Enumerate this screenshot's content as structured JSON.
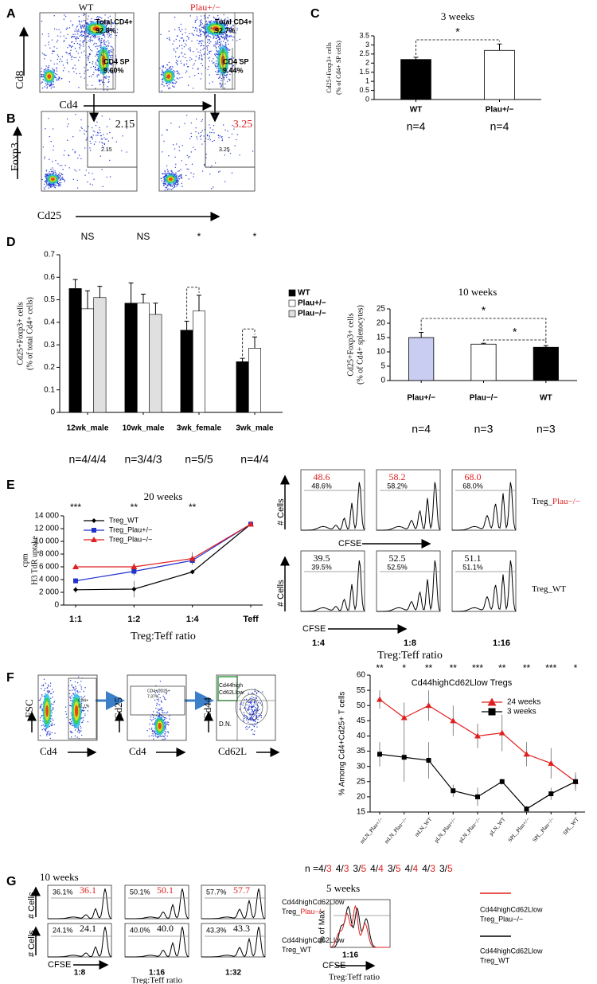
{
  "figure": {
    "A": {
      "label": "A",
      "columns": [
        "WT",
        "Plau+/−"
      ],
      "y_axis": "Cd8",
      "x_axis": "Cd4",
      "gates": [
        [
          "Total CD4+",
          "92.8%",
          "CD4 SP",
          "9.60%"
        ],
        [
          "Total CD4+",
          "92.7%",
          "CD4 SP",
          "9.44%"
        ]
      ]
    },
    "B": {
      "label": "B",
      "y_axis": "Foxp3",
      "x_axis": "Cd25",
      "gates": [
        [
          "2.15",
          "2.15"
        ],
        [
          "3.25",
          "3.25"
        ]
      ]
    },
    "C": {
      "label": "C"
    },
    "D": {
      "label": "D"
    },
    "E": {
      "label": "E",
      "rows": [
        {
          "name": [
            "Treg_",
            "Plau−/−"
          ],
          "values": [
            [
              "48.6",
              "48.6%"
            ],
            [
              "58.2",
              "58.2%"
            ],
            [
              "68.0",
              "68.0%"
            ]
          ]
        },
        {
          "name": [
            "Treg_WT"
          ],
          "values": [
            [
              "39.5",
              "39.5%"
            ],
            [
              "52.5",
              "52.5%"
            ],
            [
              "51.1",
              "51.1%"
            ]
          ]
        }
      ],
      "y_axis": "# Cells",
      "x_axis": "CFSE",
      "ratios": [
        "1:4",
        "1:8",
        "1:16"
      ],
      "ratio_label": "Treg:Teff ratio"
    },
    "F": {
      "label": "F",
      "plots": [
        {
          "y_axis": "FSC",
          "x_axis": "Cd4",
          "gate": [
            "CD4+",
            "31.1%"
          ]
        },
        {
          "y_axis": "Cd25",
          "x_axis": "Cd4",
          "gate": [
            "CD4+CD25+",
            "7.37%"
          ]
        },
        {
          "y_axis": "Cd44",
          "x_axis": "Cd62L",
          "gate": [
            "Cd44high",
            "Cd62Llow"
          ],
          "other": "D.N."
        }
      ]
    },
    "G": {
      "label": "G",
      "title": "10 weeks",
      "rows": [
        {
          "name": [
            [
              "Cd44highCd62Llow"
            ],
            [
              "Treg_",
              "Plau−/−"
            ]
          ],
          "values": [
            [
              "36.1%",
              "36.1"
            ],
            [
              "50.1%",
              "50.1"
            ],
            [
              "57.7%",
              "57.7"
            ]
          ]
        },
        {
          "name": [
            [
              "Cd44highCd62Llow"
            ],
            [
              "Treg_WT"
            ]
          ],
          "values": [
            [
              "24.1%",
              "24.1"
            ],
            [
              "40.0%",
              "40.0"
            ],
            [
              "43.3%",
              "43.3"
            ]
          ]
        }
      ],
      "y_axis": "# Cells",
      "x_axis": "CFSE",
      "ratios": [
        "1:8",
        "1:16",
        "1:32"
      ],
      "ratio_label": "Treg:Teff ratio",
      "overlay": {
        "title": "5 weeks",
        "y_axis": "% of Max",
        "ratio": "1:16",
        "x_axis": "CFSE",
        "ratio_label": "Treg:Teff ratio",
        "legend": [
          [
            "Cd44highCd62Llow",
            "Treg_Plau−/−"
          ],
          [
            "Cd44highCd62Llow",
            "Treg_WT"
          ]
        ]
      }
    }
  },
  "chart_data": [
    {
      "type": "bar",
      "title": "3 weeks",
      "ylabel": [
        "Cd25+Foxp3+ cells",
        "(% of Cd4+ SP cells)"
      ],
      "categories": [
        "WT",
        "Plau+/−"
      ],
      "values": [
        2.2,
        2.7
      ],
      "errors": [
        0.12,
        0.35
      ],
      "colors": [
        "#000000",
        "#ffffff"
      ],
      "ylim": [
        0,
        3.5
      ],
      "yticks": [
        0,
        0.5,
        1,
        1.5,
        2,
        2.5,
        3,
        3.5
      ],
      "significance": [
        "*"
      ],
      "n_labels": [
        "n=4",
        "n=4"
      ]
    },
    {
      "type": "bar",
      "ylabel": [
        "Cd25+Foxp3+ cells",
        "(% of total Cd4+ cells)"
      ],
      "categories": [
        "12wk_male",
        "10wk_male",
        "3wk_female",
        "3wk_male"
      ],
      "series": [
        {
          "name": "WT",
          "color": "#000000",
          "values": [
            0.55,
            0.485,
            0.365,
            0.225
          ],
          "errors": [
            0.04,
            0.09,
            0.04,
            0.015
          ]
        },
        {
          "name": "Plau+/−",
          "color": "#ffffff",
          "values": [
            0.46,
            0.485,
            0.45,
            0.285
          ],
          "errors": [
            0.08,
            0.04,
            0.07,
            0.05
          ]
        },
        {
          "name": "Plau−/−",
          "color": "#e0e0e0",
          "values": [
            0.51,
            0.435,
            null,
            null
          ],
          "errors": [
            0.05,
            0.05,
            null,
            null
          ]
        }
      ],
      "ylim": [
        0,
        0.7
      ],
      "yticks": [
        0,
        0.1,
        0.2,
        0.3,
        0.4,
        0.5,
        0.6,
        0.7
      ],
      "annotations": [
        "NS",
        "NS",
        "*",
        "*"
      ],
      "legend": "right",
      "n_labels": [
        "n=4/4/4",
        "n=3/4/3",
        "n=5/5",
        "n=4/4"
      ]
    },
    {
      "type": "bar",
      "title": "10 weeks",
      "ylabel": [
        "Cd25+Foxp3+ cells",
        "(% of Cd4+ splenocytes)"
      ],
      "categories": [
        "Plau+/−",
        "Plau−/−",
        "WT"
      ],
      "values": [
        15,
        12.7,
        11.6
      ],
      "errors": [
        1.8,
        0.3,
        0.6
      ],
      "colors": [
        "#c9cdf2",
        "#ffffff",
        "#000000"
      ],
      "ylim": [
        0,
        25
      ],
      "yticks": [
        0,
        5,
        10,
        15,
        20,
        25
      ],
      "significance": [
        "*",
        "*"
      ],
      "n_labels": [
        "n=4",
        "n=3",
        "n=3"
      ]
    },
    {
      "type": "line",
      "title": "20 weeks",
      "ylabel": [
        "cpm",
        "H3 TdR uptake"
      ],
      "xlabel": "Treg:Teff ratio",
      "categories": [
        "1:1",
        "1:2",
        "1:4",
        "Teff"
      ],
      "series": [
        {
          "name": "Treg_WT",
          "color": "#000000",
          "marker": "diamond",
          "values": [
            2400,
            2500,
            5200,
            12700
          ],
          "errors": [
            500,
            1300,
            300,
            200
          ]
        },
        {
          "name": "Treg_Plau+/−",
          "color": "#2233cc",
          "marker": "square",
          "values": [
            3800,
            5300,
            7000,
            12700
          ],
          "errors": [
            400,
            700,
            500,
            200
          ]
        },
        {
          "name": "Treg_Plau−/−",
          "color": "#e02020",
          "marker": "triangle",
          "values": [
            6000,
            6000,
            7300,
            12700
          ],
          "errors": [
            200,
            600,
            1000,
            200
          ]
        }
      ],
      "ylim": [
        0,
        14000
      ],
      "yticks": [
        0,
        {
          "value": 2000,
          "label": "2 000"
        },
        {
          "value": 4000,
          "label": "4 000"
        },
        {
          "value": 6000,
          "label": "6 000"
        },
        {
          "value": 8000,
          "label": "8 000"
        },
        {
          "value": 10000,
          "label": "10 000"
        },
        {
          "value": 12000,
          "label": "12 000"
        },
        {
          "value": 14000,
          "label": "14 000"
        }
      ],
      "annotations": [
        "***",
        "**",
        "**",
        null
      ],
      "legend": "upper left"
    },
    {
      "type": "line",
      "title": "Cd44highCd62Llow Tregs",
      "ylabel": [
        "% Among Cd4+Cd25+ T cells"
      ],
      "categories": [
        "mLN_Plau+/−",
        "mLN_Plau−/−",
        "mLN_WT",
        "pLN_Plau+/−",
        "pLN_Plau−/−",
        "pLN_WT",
        "SPL_Plau+/−",
        "SPL_Plau−/−",
        "SPL_WT"
      ],
      "series": [
        {
          "name": "24 weeks",
          "color": "#e02020",
          "marker": "triangle",
          "values": [
            52,
            46,
            50,
            45,
            40,
            41,
            34,
            31,
            25
          ],
          "errors": [
            3,
            5,
            5,
            5,
            4,
            6,
            4,
            5,
            2
          ]
        },
        {
          "name": "3 weeks",
          "color": "#000000",
          "marker": "square",
          "values": [
            34,
            33,
            32,
            22,
            20,
            25,
            16,
            21,
            25
          ],
          "errors": [
            4,
            8,
            6,
            2,
            3,
            1,
            1,
            2,
            3
          ]
        }
      ],
      "ylim": [
        15,
        60
      ],
      "yticks": [
        15,
        20,
        25,
        30,
        35,
        40,
        45,
        50,
        55,
        60
      ],
      "annotations": [
        "**",
        "*",
        "**",
        "**",
        "***",
        "**",
        "**",
        "***",
        "*"
      ],
      "legend": "upper right",
      "n_prefix": "n =",
      "n_groups": [
        {
          "first": "4/",
          "second": "3"
        },
        {
          "first": "4/",
          "second": "3"
        },
        {
          "first": "3/",
          "second": "5"
        },
        {
          "first": "4/",
          "second": "4"
        },
        {
          "first": "3/",
          "second": "5"
        },
        {
          "first": "4/",
          "second": "4"
        },
        {
          "first": "4/",
          "second": "3"
        },
        {
          "first": "3/",
          "second": "5"
        }
      ]
    }
  ]
}
